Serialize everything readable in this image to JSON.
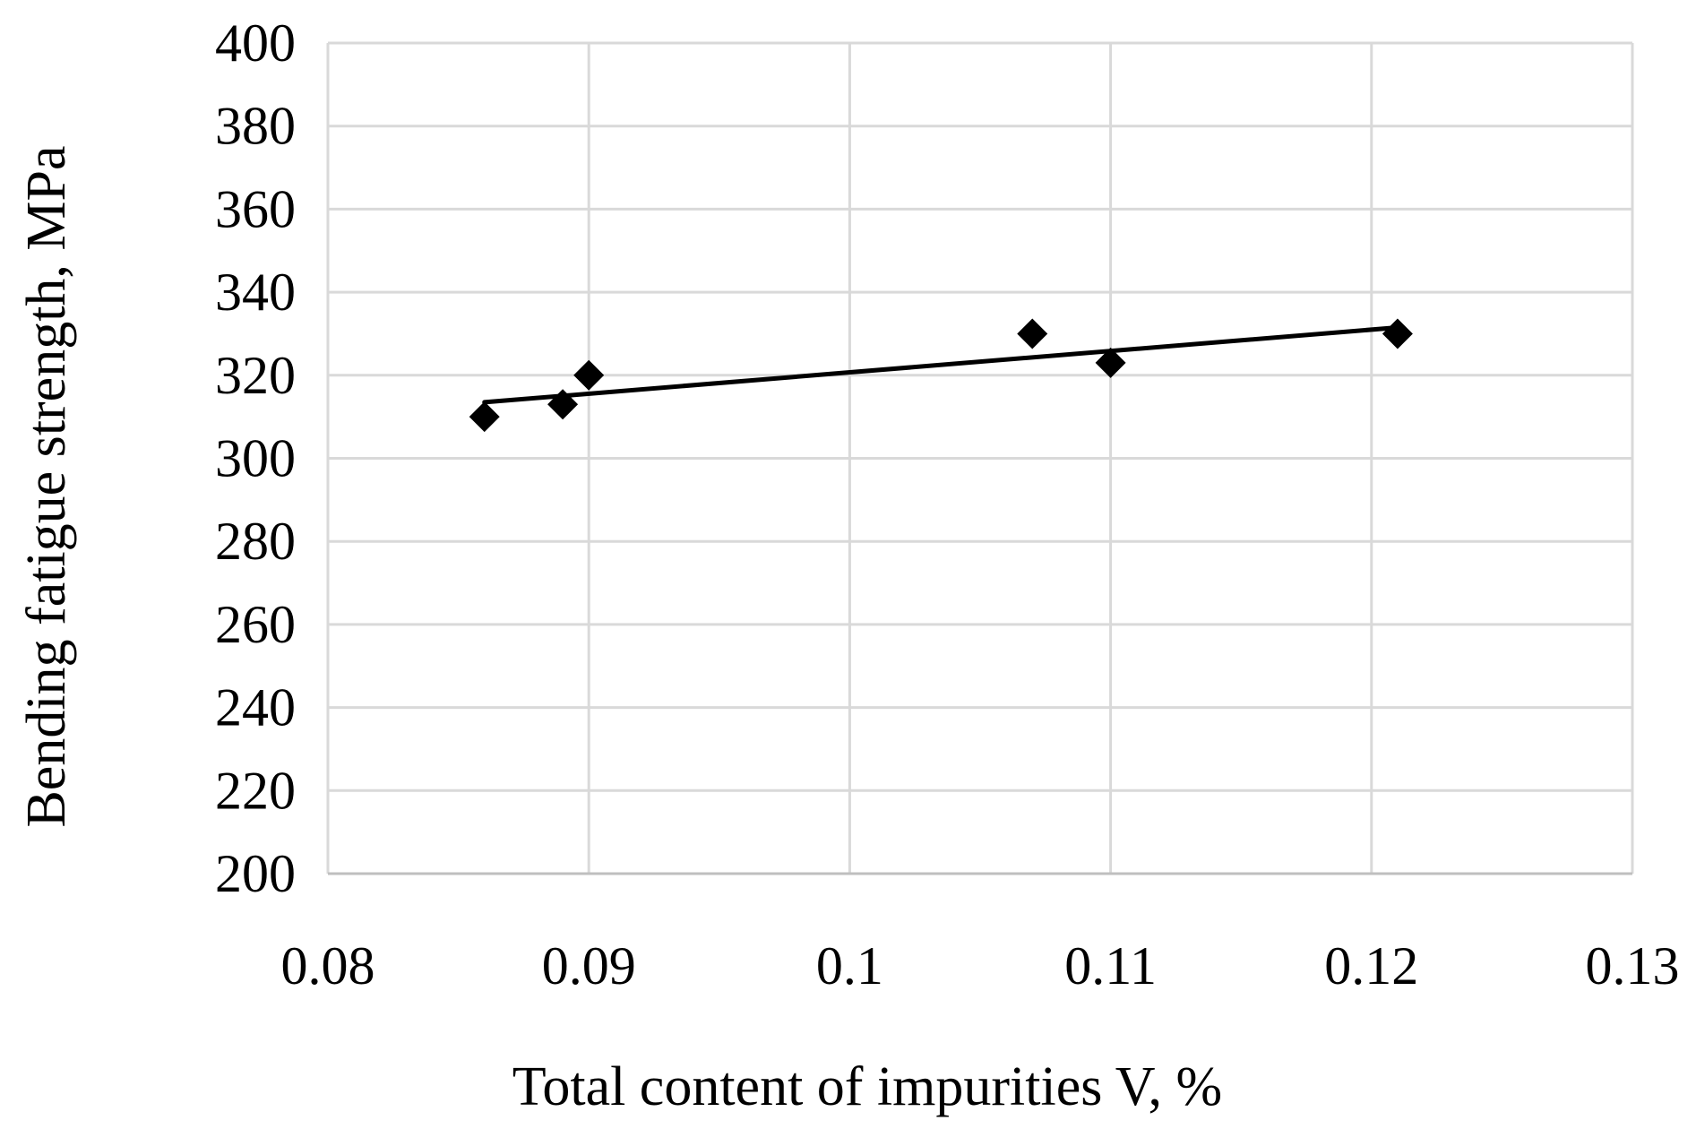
{
  "chart_data": {
    "type": "scatter",
    "title": "",
    "xlabel": "Total content of impurities V, %",
    "ylabel": "Bending fatigue strength, MPa",
    "xlim": [
      0.08,
      0.13
    ],
    "ylim": [
      200,
      400
    ],
    "x_ticks": [
      0.08,
      0.09,
      0.1,
      0.11,
      0.12,
      0.13
    ],
    "y_ticks": [
      200,
      220,
      240,
      260,
      280,
      300,
      320,
      340,
      360,
      380,
      400
    ],
    "x_tick_labels": [
      "0.08",
      "0.09",
      "0.1",
      "0.11",
      "0.12",
      "0.13"
    ],
    "y_tick_labels": [
      "200",
      "220",
      "240",
      "260",
      "280",
      "300",
      "320",
      "340",
      "360",
      "380",
      "400"
    ],
    "grid": true,
    "legend": "none",
    "series": [
      {
        "marker": "diamond",
        "color": "#000000",
        "points": [
          {
            "x": 0.086,
            "y": 310
          },
          {
            "x": 0.089,
            "y": 313
          },
          {
            "x": 0.09,
            "y": 320
          },
          {
            "x": 0.107,
            "y": 330
          },
          {
            "x": 0.11,
            "y": 323
          },
          {
            "x": 0.121,
            "y": 330
          }
        ]
      }
    ],
    "trendline": {
      "type": "linear",
      "color": "#000000",
      "from": {
        "x": 0.086,
        "y": 313.5
      },
      "to": {
        "x": 0.121,
        "y": 331.5
      }
    }
  }
}
